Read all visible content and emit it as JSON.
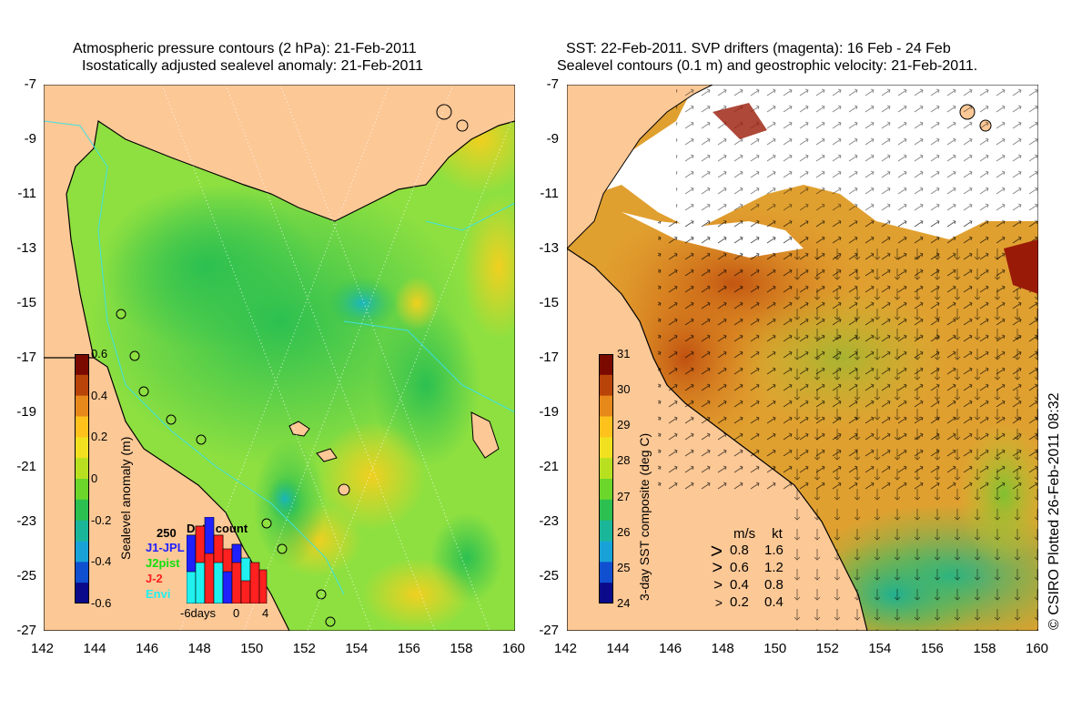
{
  "left_panel": {
    "title_line1": "Atmospheric pressure contours (2 hPa): 21-Feb-2011",
    "title_line2": "Isostatically adjusted sealevel anomaly: 21-Feb-2011",
    "colorbar": {
      "label": "Sealevel anomaly (m)",
      "ticks": [
        "0.6",
        "0.4",
        "0.2",
        "0",
        "-0.2",
        "-0.4",
        "-0.6"
      ],
      "colors": [
        "#7a0a00",
        "#b8440a",
        "#e7891a",
        "#ffc21c",
        "#f0e020",
        "#b8e020",
        "#6cd62a",
        "#2cc050",
        "#1ab69a",
        "#19a2d8",
        "#1050d0",
        "#0a0a8a"
      ]
    },
    "data_count": {
      "title": "Data count",
      "max_label": "250",
      "x_labels": [
        "-6days",
        "0",
        "4"
      ],
      "legend": [
        {
          "name": "J1-JPL",
          "color": "#2020ff"
        },
        {
          "name": "J2pist",
          "color": "#10e010"
        },
        {
          "name": "J-2",
          "color": "#ff2020"
        },
        {
          "name": "Envi",
          "color": "#20f0f0"
        }
      ]
    }
  },
  "right_panel": {
    "title_line1": "SST: 22-Feb-2011. SVP drifters (magenta): 16 Feb - 24 Feb",
    "title_line2": "Sealevel contours (0.1 m) and geostrophic velocity: 21-Feb-2011.",
    "colorbar": {
      "label": "3-day SST composite (deg C)",
      "ticks": [
        "31",
        "30",
        "29",
        "28",
        "27",
        "26",
        "25",
        "24"
      ],
      "colors": [
        "#7a0a00",
        "#b8440a",
        "#e7891a",
        "#ffc21c",
        "#f0e020",
        "#b8e020",
        "#6cd62a",
        "#2cc050",
        "#1ab69a",
        "#19a2d8",
        "#1050d0",
        "#0a0a8a"
      ]
    },
    "velocity_legend": {
      "header_ms": "m/s",
      "header_kt": "kt",
      "rows": [
        {
          "ms": "0.8",
          "kt": "1.6"
        },
        {
          "ms": "0.6",
          "kt": "1.2"
        },
        {
          "ms": "0.4",
          "kt": "0.8"
        },
        {
          "ms": "0.2",
          "kt": "0.4"
        }
      ]
    }
  },
  "axes": {
    "x_ticks": [
      "142",
      "144",
      "146",
      "148",
      "150",
      "152",
      "154",
      "156",
      "158",
      "160"
    ],
    "y_ticks": [
      "-7",
      "-9",
      "-11",
      "-13",
      "-15",
      "-17",
      "-19",
      "-21",
      "-23",
      "-25",
      "-27"
    ]
  },
  "credit": "© CSIRO Plotted 26-Feb-2011 08:32",
  "colors": {
    "land": "#fcc896",
    "ocean_green": "#8ee040",
    "coast": "#000000",
    "bathymetry": "#40e0e0"
  }
}
